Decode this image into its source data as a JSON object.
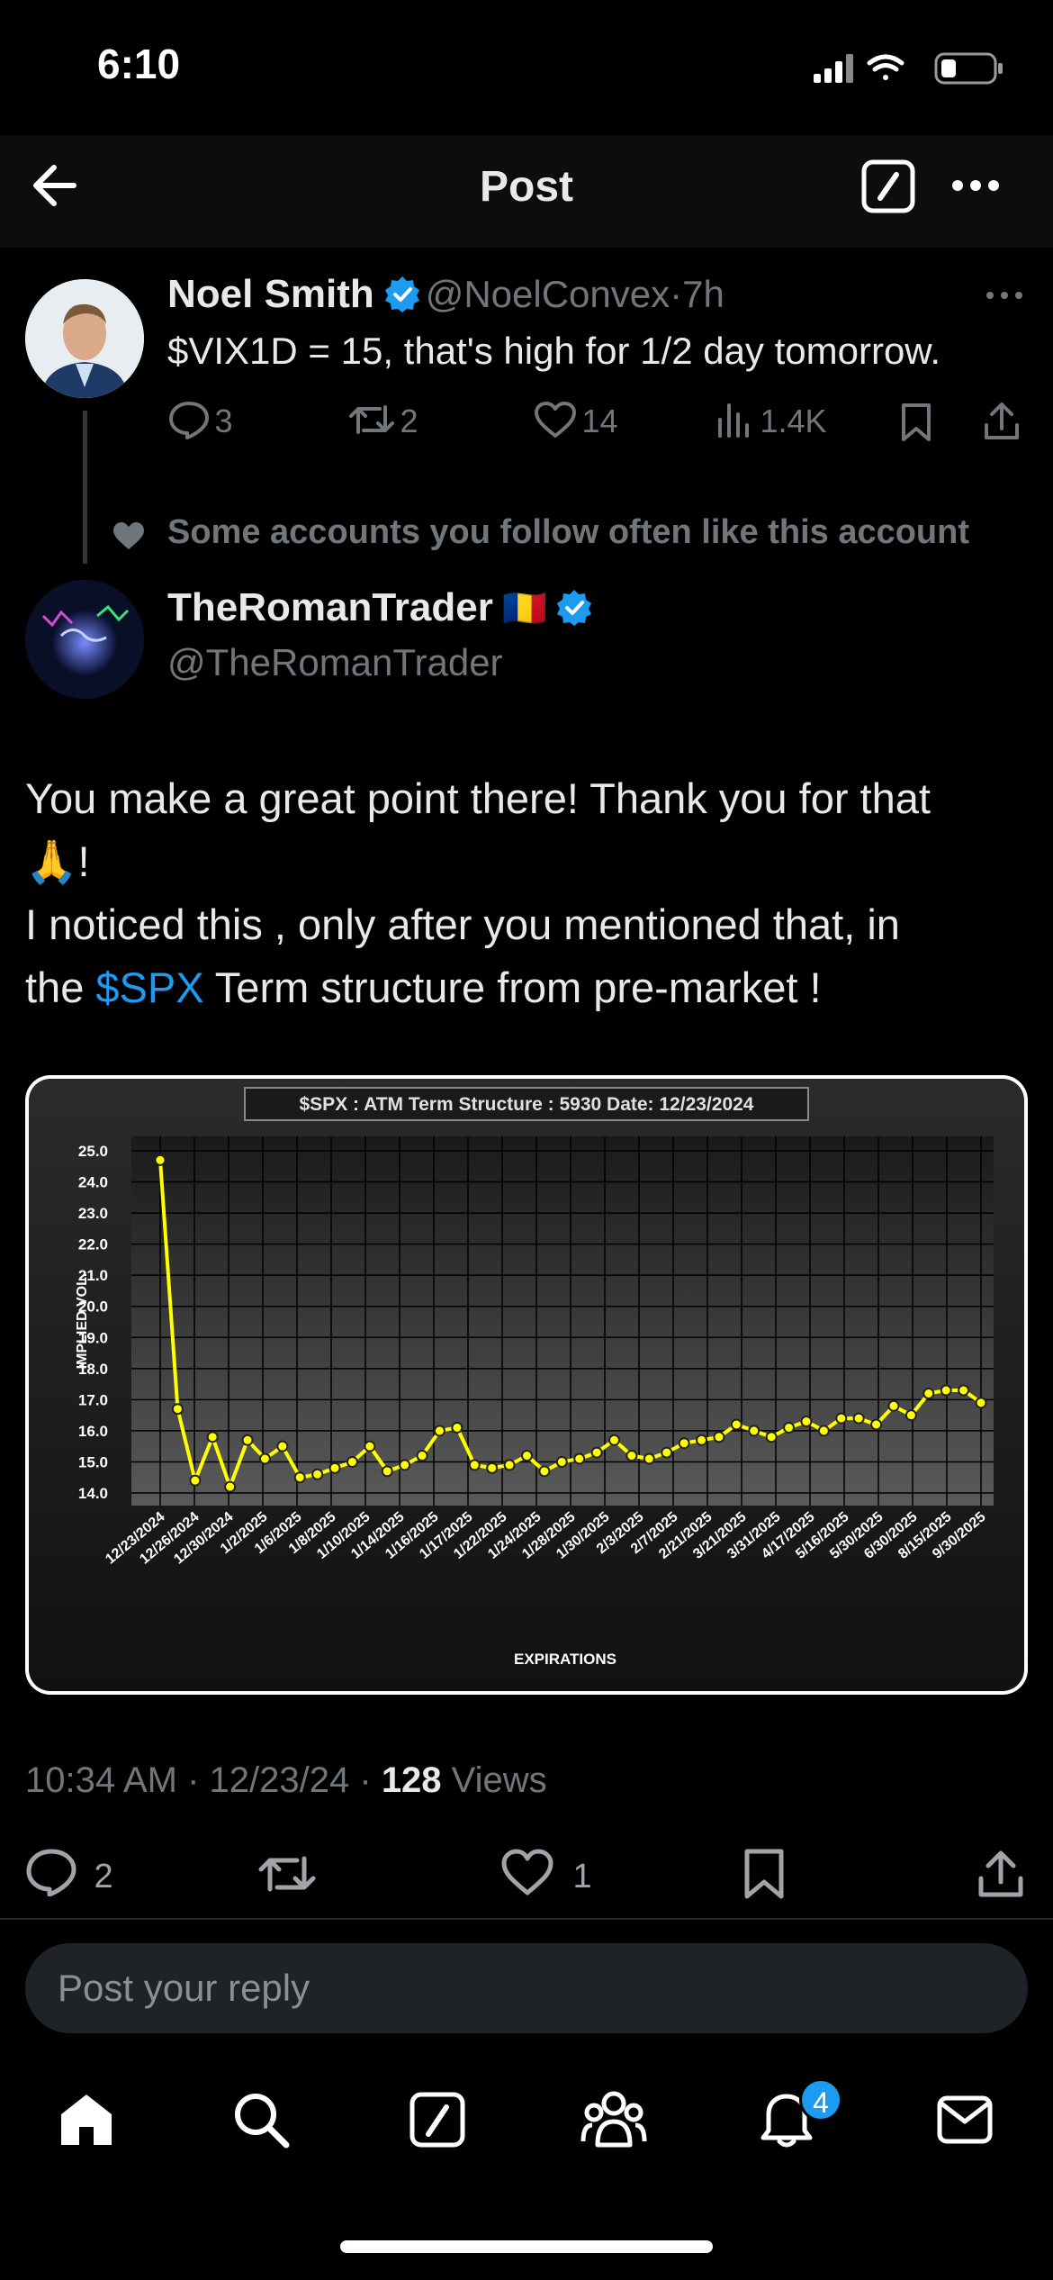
{
  "status_bar": {
    "time": "6:10"
  },
  "header": {
    "title": "Post"
  },
  "parent_tweet": {
    "name": "Noel Smith",
    "handle": "@NoelConvex",
    "time": "7h",
    "text": "$VIX1D = 15, that's high for 1/2 day tomorrow.",
    "replies": "3",
    "reposts": "2",
    "likes": "14",
    "views": "1.4K"
  },
  "social_context": "Some accounts you follow often like this account",
  "main_tweet": {
    "name": "TheRomanTrader",
    "flag": "🇷🇴",
    "handle": "@TheRomanTrader",
    "line1": "You make a great point there! Thank you for that",
    "emoji": "🙏",
    "line1_end": "!",
    "line2": "I noticed this , only after you mentioned that,  in",
    "line3_pre": "the ",
    "line3_link": "$SPX",
    "line3_post": " Term structure from pre-market !",
    "meta_time": "10:34 AM · 12/23/24 · ",
    "meta_views": "128",
    "meta_views_label": " Views",
    "replies": "2",
    "likes": "1"
  },
  "reply": {
    "placeholder": "Post your reply"
  },
  "tabbar": {
    "notifications_badge": "4"
  },
  "colors": {
    "accent": "#1d9bf0",
    "line": "#ffff00"
  },
  "chart_data": {
    "type": "line",
    "title": "$SPX : ATM Term Structure :  5930   Date: 12/23/2024",
    "xlabel": "EXPIRATIONS",
    "ylabel": "IMPLIED VOL.",
    "ylim": [
      14.0,
      25.0
    ],
    "yticks": [
      "25.0",
      "24.0",
      "23.0",
      "22.0",
      "21.0",
      "20.0",
      "19.0",
      "18.0",
      "17.0",
      "16.0",
      "15.0",
      "14.0"
    ],
    "tick_labels": [
      "12/23/2024",
      "12/26/2024",
      "12/30/2024",
      "1/2/2025",
      "1/6/2025",
      "1/8/2025",
      "1/10/2025",
      "1/14/2025",
      "1/16/2025",
      "1/17/2025",
      "1/22/2025",
      "1/24/2025",
      "1/28/2025",
      "1/30/2025",
      "2/3/2025",
      "2/7/2025",
      "2/21/2025",
      "3/21/2025",
      "3/31/2025",
      "4/17/2025",
      "5/16/2025",
      "5/30/2025",
      "6/30/2025",
      "8/15/2025",
      "9/30/2025"
    ],
    "values": [
      24.7,
      16.7,
      14.4,
      15.8,
      14.2,
      15.7,
      15.1,
      15.5,
      14.5,
      14.6,
      14.8,
      15.0,
      15.5,
      14.7,
      14.9,
      15.2,
      16.0,
      16.1,
      14.9,
      14.8,
      14.9,
      15.2,
      14.7,
      15.0,
      15.1,
      15.3,
      15.7,
      15.2,
      15.1,
      15.3,
      15.6,
      15.7,
      15.8,
      16.2,
      16.0,
      15.8,
      16.1,
      16.3,
      16.0,
      16.4,
      16.4,
      16.2,
      16.8,
      16.5,
      17.2,
      17.3,
      17.3,
      16.9
    ],
    "grid": true
  }
}
